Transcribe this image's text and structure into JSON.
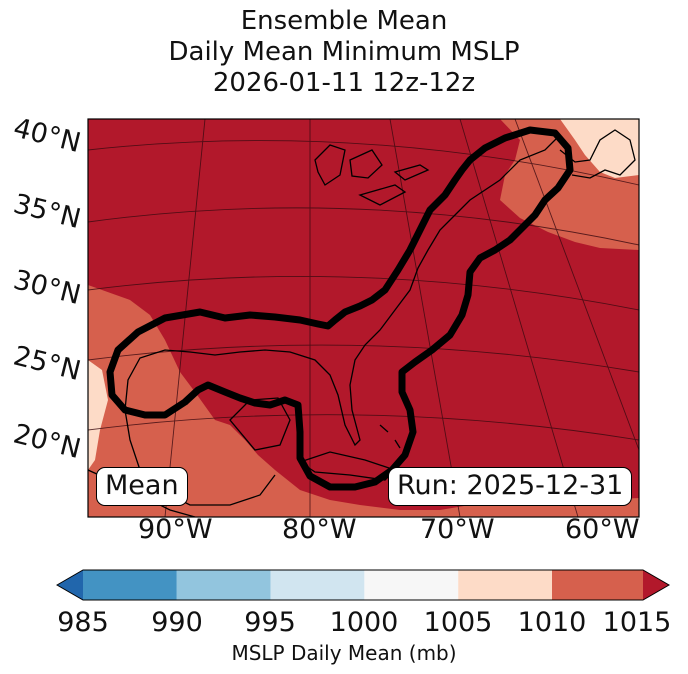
{
  "title": {
    "line1": "Ensemble Mean",
    "line2": "Daily Mean Minimum MSLP",
    "line3": "2026-01-11 12z-12z"
  },
  "map": {
    "lat_labels": [
      "40°N",
      "35°N",
      "30°N",
      "25°N",
      "20°N"
    ],
    "lon_labels": [
      "90°W",
      "80°W",
      "70°W",
      "60°W"
    ],
    "mean_label": "Mean",
    "run_label": "Run: 2025-12-31",
    "contour_color": "#000000"
  },
  "colorbar": {
    "title": "MSLP Daily Mean (mb)",
    "ticks": [
      "985",
      "990",
      "995",
      "1000",
      "1005",
      "1010",
      "1015"
    ],
    "colors": [
      "#2166ac",
      "#4393c3",
      "#92c5de",
      "#d1e5f0",
      "#f7f7f7",
      "#fddbc7",
      "#d6604d",
      "#b2182b"
    ]
  },
  "legend_levels": [
    {
      "range": "< 985",
      "color": "#2166ac"
    },
    {
      "range": "985-990",
      "color": "#4393c3"
    },
    {
      "range": "990-995",
      "color": "#92c5de"
    },
    {
      "range": "995-1000",
      "color": "#d1e5f0"
    },
    {
      "range": "1000-1005",
      "color": "#f7f7f7"
    },
    {
      "range": "1005-1010",
      "color": "#fddbc7"
    },
    {
      "range": "1010-1015",
      "color": "#d6604d"
    },
    {
      "range": "> 1015",
      "color": "#b2182b"
    }
  ]
}
